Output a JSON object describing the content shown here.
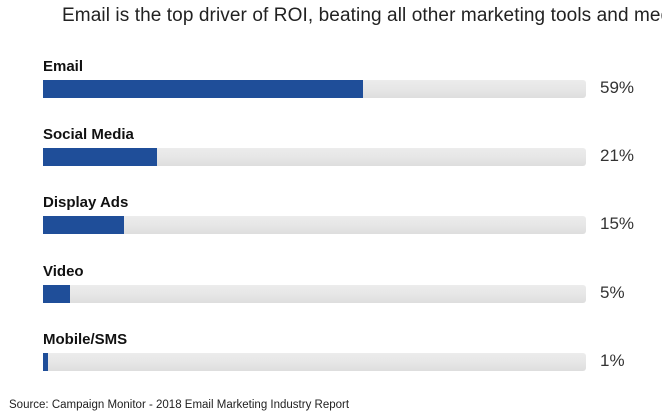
{
  "chart_data": {
    "type": "bar",
    "orientation": "horizontal",
    "title": "Email is the top driver of ROI, beating all other marketing tools and media",
    "categories": [
      "Email",
      "Social Media",
      "Display Ads",
      "Video",
      "Mobile/SMS"
    ],
    "values": [
      59,
      21,
      15,
      5,
      1
    ],
    "value_labels": [
      "59%",
      "21%",
      "15%",
      "5%",
      "1%"
    ],
    "xlim": [
      0,
      100
    ],
    "xlabel": "",
    "ylabel": "",
    "grid": false,
    "bar_color": "#1f4e99",
    "track_color": "#e6e6e6",
    "source": "Source: Campaign Monitor - 2018 Email Marketing Industry Report"
  }
}
